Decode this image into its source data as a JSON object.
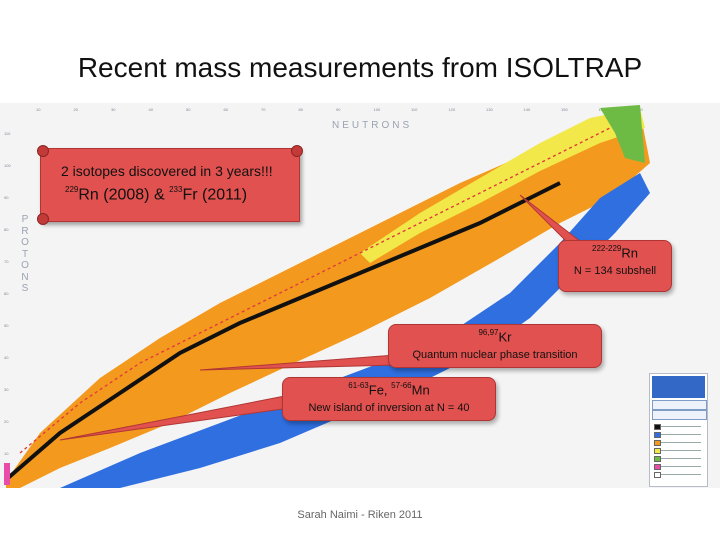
{
  "slide": {
    "title": "Recent mass measurements from ISOLTRAP",
    "footer": "Sarah Naimi - Riken 2011"
  },
  "chart": {
    "x_axis_label": "NEUTRONS",
    "y_axis_label": "PROTONS",
    "x_ticks": [
      "10",
      "20",
      "30",
      "40",
      "50",
      "60",
      "70",
      "80",
      "90",
      "100",
      "110",
      "120",
      "130",
      "140",
      "150",
      "160",
      "170"
    ],
    "y_ticks": [
      "110",
      "100",
      "90",
      "80",
      "70",
      "60",
      "50",
      "40",
      "30",
      "20",
      "10"
    ],
    "colors": {
      "stable": "#111111",
      "beta_minus": "#2f6fe0",
      "beta_plus": "#f39a1e",
      "alpha": "#f2e84a",
      "fission": "#6dbb45",
      "proton": "#e84ca8",
      "unknown": "#ffffff",
      "measured_marker": "#e23b3b"
    }
  },
  "banner": {
    "line1": "2 isotopes discovered in 3 years!!!",
    "rn_mass": "229",
    "rn_symbol": "Rn (2008) & ",
    "fr_mass": "233",
    "fr_symbol": "Fr (2011)"
  },
  "callouts": {
    "rn": {
      "mass": "222-229",
      "symbol": "Rn",
      "text": "N = 134 subshell"
    },
    "kr": {
      "mass": "96,97",
      "symbol": "Kr",
      "text": "Quantum nuclear phase transition"
    },
    "fe": {
      "mass1": "61-63",
      "symbol1": "Fe, ",
      "mass2": "57-66",
      "symbol2": "Mn",
      "text": "New island of inversion at N = 40"
    }
  },
  "legend": {
    "entries": [
      "decay-stable",
      "decay-beta-minus",
      "decay-beta-plus",
      "decay-alpha",
      "decay-fission",
      "decay-proton",
      "decay-unknown"
    ]
  }
}
